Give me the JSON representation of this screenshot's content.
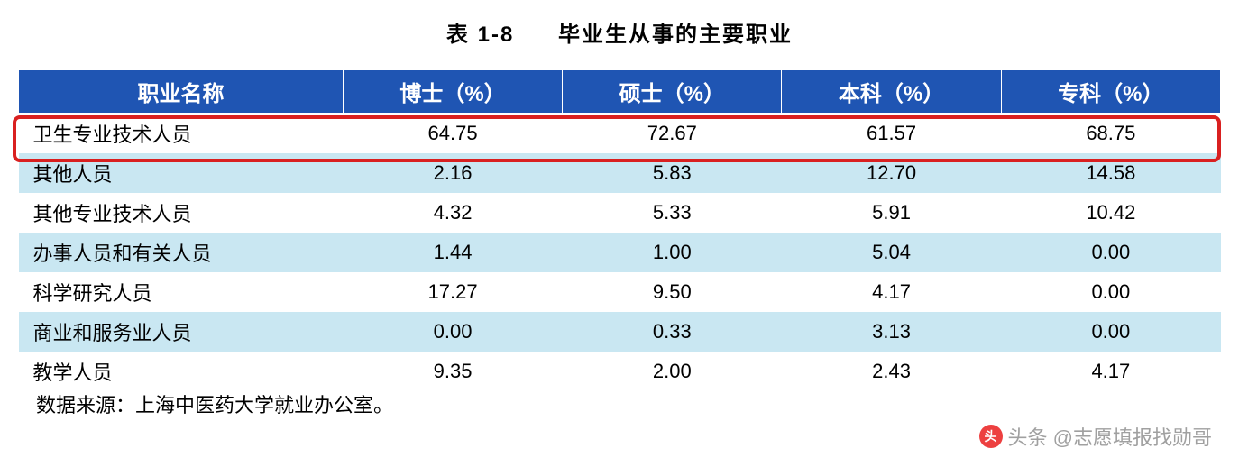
{
  "title": {
    "table_number": "表 1-8",
    "table_name": "毕业生从事的主要职业",
    "fontsize": 24,
    "color": "#000000"
  },
  "table": {
    "type": "table",
    "header_bg": "#1f55b3",
    "header_text_color": "#ffffff",
    "row_alt_bg": "#c9e7f2",
    "row_bg": "#ffffff",
    "border_color": "#ffffff",
    "highlight_border_color": "#d92020",
    "highlight_row_index": 0,
    "columns": [
      {
        "label": "职业名称",
        "align": "left",
        "width": "27%"
      },
      {
        "label": "博士（%）",
        "align": "center",
        "width": "18.25%"
      },
      {
        "label": "硕士（%）",
        "align": "center",
        "width": "18.25%"
      },
      {
        "label": "本科（%）",
        "align": "center",
        "width": "18.25%"
      },
      {
        "label": "专科（%）",
        "align": "center",
        "width": "18.25%"
      }
    ],
    "rows": [
      [
        "卫生专业技术人员",
        "64.75",
        "72.67",
        "61.57",
        "68.75"
      ],
      [
        "其他人员",
        "2.16",
        "5.83",
        "12.70",
        "14.58"
      ],
      [
        "其他专业技术人员",
        "4.32",
        "5.33",
        "5.91",
        "10.42"
      ],
      [
        "办事人员和有关人员",
        "1.44",
        "1.00",
        "5.04",
        "0.00"
      ],
      [
        "科学研究人员",
        "17.27",
        "9.50",
        "4.17",
        "0.00"
      ],
      [
        "商业和服务业人员",
        "0.00",
        "0.33",
        "3.13",
        "0.00"
      ],
      [
        "教学人员",
        "9.35",
        "2.00",
        "2.43",
        "4.17"
      ]
    ],
    "header_fontsize": 24,
    "cell_fontsize": 22
  },
  "source": {
    "text": "数据来源：上海中医药大学就业办公室。",
    "fontsize": 22,
    "color": "#000000"
  },
  "watermark": {
    "icon_glyph": "头",
    "text": "头条 @志愿填报找勋哥",
    "color": "#a0a0a0",
    "icon_bg": "#ed4040"
  }
}
